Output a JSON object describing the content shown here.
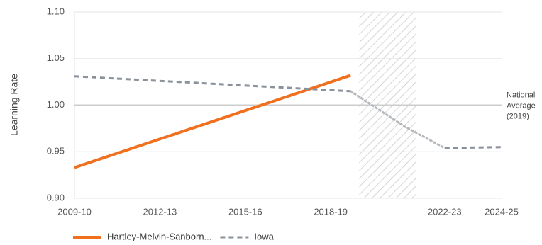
{
  "chart_data": {
    "type": "line",
    "title": "",
    "xlabel": "",
    "ylabel": "Learning Rate",
    "ylim": [
      0.9,
      1.1
    ],
    "xlim": [
      2009,
      2024
    ],
    "yticks": [
      "0.90",
      "0.95",
      "1.00",
      "1.05",
      "1.10"
    ],
    "xticks": [
      {
        "x": 2009,
        "label": "2009-10"
      },
      {
        "x": 2012,
        "label": "2012-13"
      },
      {
        "x": 2015,
        "label": "2015-16"
      },
      {
        "x": 2018,
        "label": "2018-19"
      },
      {
        "x": 2022,
        "label": "2022-23"
      },
      {
        "x": 2024,
        "label": "2024-25"
      }
    ],
    "grid": "horizontal",
    "legend_position": "bottom-left",
    "shaded_region": {
      "x_start": 2019,
      "x_end": 2021,
      "pattern": "diagonal-hatch"
    },
    "reference_line": {
      "y": 1.0,
      "label_lines": [
        "National",
        "Average",
        "(2019)"
      ],
      "color": "#cccccc"
    },
    "series": [
      {
        "name": "Hartley-Melvin-Sanborn...",
        "color": "#f07020",
        "style": "solid",
        "points": [
          {
            "x": 2009,
            "y": 0.933
          },
          {
            "x": 2018.7,
            "y": 1.032
          }
        ]
      },
      {
        "name": "Iowa",
        "color": "#8a9199",
        "style": "dashed",
        "points": [
          {
            "x": 2009,
            "y": 1.031
          },
          {
            "x": 2018.7,
            "y": 1.015
          }
        ]
      },
      {
        "name": "Iowa",
        "color": "#b3b8be",
        "style": "dotted",
        "legend": false,
        "points": [
          {
            "x": 2018.7,
            "y": 1.015
          },
          {
            "x": 2020.6,
            "y": 0.977
          },
          {
            "x": 2022,
            "y": 0.954
          }
        ]
      },
      {
        "name": "Iowa",
        "color": "#8a9199",
        "style": "dashed",
        "legend": false,
        "points": [
          {
            "x": 2022,
            "y": 0.954
          },
          {
            "x": 2024,
            "y": 0.955
          }
        ]
      }
    ]
  }
}
